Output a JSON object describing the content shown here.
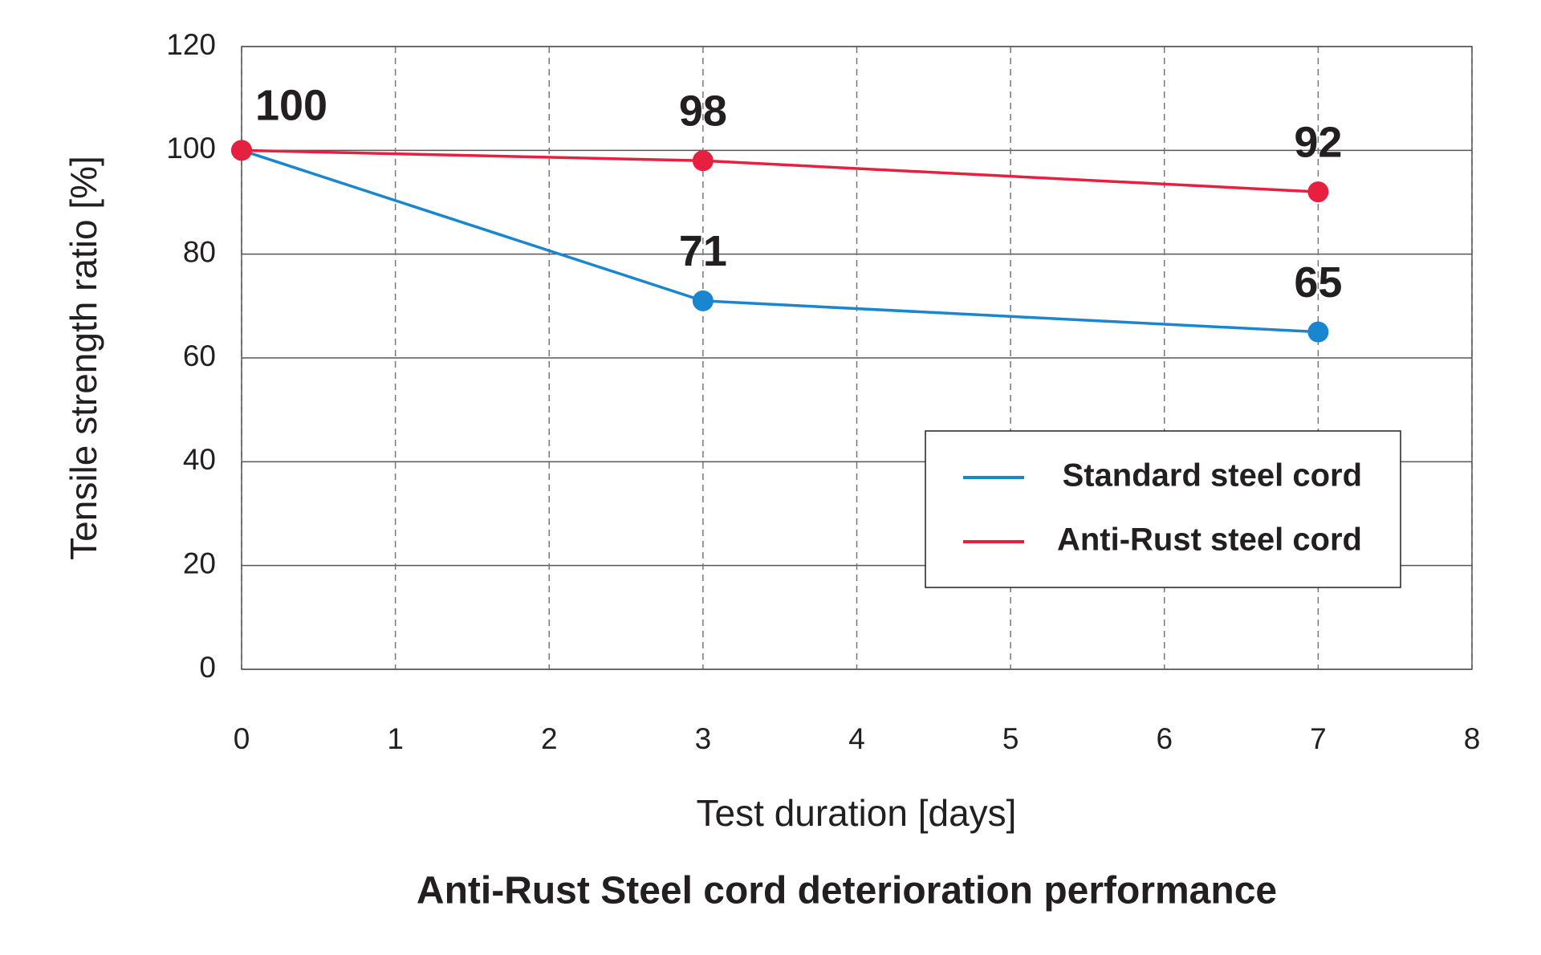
{
  "chart_data": {
    "type": "line",
    "title": "Anti-Rust Steel cord deterioration performance",
    "xlabel": "Test duration [days]",
    "ylabel": "Tensile strength ratio [%]",
    "x": [
      0,
      3,
      7
    ],
    "series": [
      {
        "name": "Standard steel cord",
        "color": "#1a86cf",
        "values": [
          100,
          71,
          65
        ]
      },
      {
        "name": "Anti-Rust steel cord",
        "color": "#e8203f",
        "values": [
          100,
          98,
          92
        ]
      }
    ],
    "xlim": [
      0,
      8
    ],
    "xticks": [
      0,
      1,
      2,
      3,
      4,
      5,
      6,
      7,
      8
    ],
    "ylim": [
      0,
      120
    ],
    "yticks": [
      0,
      20,
      40,
      60,
      80,
      100,
      120
    ],
    "grid": true,
    "legend": "lower right"
  }
}
